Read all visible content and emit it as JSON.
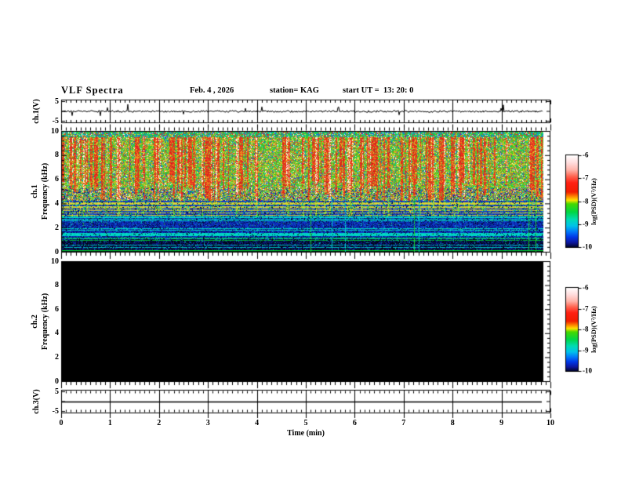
{
  "title": {
    "main": "VLF Spectra",
    "date": "Feb. 4 , 2026",
    "station": "station= KAG",
    "start_ut": "start UT =  13: 20: 0"
  },
  "x_axis": {
    "label": "Time (min)",
    "ticks": [
      "0",
      "1",
      "2",
      "3",
      "4",
      "5",
      "6",
      "7",
      "8",
      "9",
      "10"
    ],
    "range_min": [
      0,
      10
    ],
    "minor_tick_min": 0.1,
    "data_end_min": 9.85
  },
  "panels": [
    {
      "id": "ch1",
      "kind": "waveform",
      "ylabel": "ch.1(V)",
      "y_ticks": [
        "5",
        "-5"
      ],
      "y_range_V": [
        -5,
        5
      ],
      "description": "low-amplitude noise around 0 V with sparse impulsive spikes up to ~3 V"
    },
    {
      "id": "spec1",
      "kind": "spectrogram",
      "ylabel_lines": [
        "ch.1",
        "Frequency (kHz)"
      ],
      "y_ticks": [
        "10",
        "8",
        "6",
        "4",
        "2",
        "0"
      ],
      "y_range_kHz": [
        0,
        10
      ],
      "description": "dense red/white vertical sferic streaks above ~4 kHz on green-yellow background; blue background with horizontal cyan/green tone lines 1.5-4 kHz; dark navy below ~1.5 kHz; bright green line near 0.1 kHz; occasional narrow vertical green/cyan lines span full band"
    },
    {
      "id": "spec2",
      "kind": "spectrogram",
      "ylabel_lines": [
        "ch.2",
        "Frequency (kHz)"
      ],
      "y_ticks": [
        "10",
        "8",
        "6",
        "4",
        "2",
        "0"
      ],
      "y_range_kHz": [
        0,
        10
      ],
      "description": "no data - entire panel uniform black"
    },
    {
      "id": "ch3",
      "kind": "waveform",
      "ylabel": "ch.3(V)",
      "y_ticks": [
        "5",
        "-5"
      ],
      "y_range_V": [
        -5,
        5
      ],
      "description": "constant flat line at 0 V"
    }
  ],
  "colorbars": [
    {
      "label": "log(PSD)(V²/Hz)",
      "ticks": [
        "-6",
        "-7",
        "-8",
        "-9",
        "-10"
      ],
      "range": [
        -10,
        -6
      ]
    },
    {
      "label": "log(PSD)(V²/Hz)",
      "ticks": [
        "-6",
        "-7",
        "-8",
        "-9",
        "-10"
      ],
      "range": [
        -10,
        -6
      ]
    }
  ],
  "colors": {
    "frame": "#000000",
    "background": "#ffffff",
    "colormap_stops": [
      [
        "0.00",
        "#ffffff"
      ],
      [
        "0.08",
        "#ffdede"
      ],
      [
        "0.16",
        "#ffb4aa"
      ],
      [
        "0.23",
        "#ff6450"
      ],
      [
        "0.30",
        "#ff2012"
      ],
      [
        "0.40",
        "#f21d00"
      ],
      [
        "0.45",
        "#ff8a00"
      ],
      [
        "0.49",
        "#ffe400"
      ],
      [
        "0.53",
        "#46d800"
      ],
      [
        "0.62",
        "#00d645"
      ],
      [
        "0.70",
        "#00dcb4"
      ],
      [
        "0.77",
        "#00c2ea"
      ],
      [
        "0.83",
        "#007cfa"
      ],
      [
        "0.89",
        "#0038e8"
      ],
      [
        "0.95",
        "#0d17a0"
      ],
      [
        "1.00",
        "#02062e"
      ]
    ]
  },
  "chart_data": [
    {
      "type": "line",
      "panel": "ch.1(V)",
      "xlabel": "Time (min)",
      "ylabel": "ch.1(V)",
      "xlim": [
        0,
        10
      ],
      "ylim": [
        -5,
        5
      ],
      "series": [
        {
          "name": "ch.1 raw signal (V)",
          "summary": "noise band about ±0.4 V centred on 0 V for the full 0–9.85 min record, with sparse impulsive spikes reaching ~±3 V (e.g. near 1.3, 4.4, 5.6, 7.7 min)"
        }
      ]
    },
    {
      "type": "heatmap",
      "panel": "ch.1 spectrogram",
      "xlabel": "Time (min)",
      "ylabel": "Frequency (kHz)",
      "xlim": [
        0,
        10
      ],
      "ylim": [
        0,
        10
      ],
      "colorbar_label": "log(PSD)(V²/Hz)",
      "clim": [
        -10,
        -6
      ],
      "summary": "continuous dense vertical sferic bursts 4–9.6 kHz with PSD ≈ -6.5 to -7 (red/white) on green background (≈ -8); 3–4 kHz transition with horizontal yellow-green lines; 1.5–3 kHz mostly blue (≈ -9) crossed by horizontal cyan tone lines; below 1.5 kHz dark navy (≈ -10) with a few green/cyan horizontal lines and a bright green line near 0.1 kHz; narrow vertical green/cyan (rarely red) lines cross the lower band; record ends at ≈ 9.85 min"
    },
    {
      "type": "heatmap",
      "panel": "ch.2 spectrogram",
      "xlabel": "Time (min)",
      "ylabel": "Frequency (kHz)",
      "xlim": [
        0,
        10
      ],
      "ylim": [
        0,
        10
      ],
      "colorbar_label": "log(PSD)(V²/Hz)",
      "clim": [
        -10,
        -6
      ],
      "summary": "uniform black over the whole 0–10 kHz × 0–9.85 min area (signal at or below the -10 colour-scale floor)"
    },
    {
      "type": "line",
      "panel": "ch.3(V)",
      "xlabel": "Time (min)",
      "ylabel": "ch.3(V)",
      "xlim": [
        0,
        10
      ],
      "ylim": [
        -5,
        5
      ],
      "series": [
        {
          "name": "ch.3 raw signal (V)",
          "summary": "perfectly flat line at 0 V from 0 to ≈ 9.8 min"
        }
      ]
    }
  ]
}
